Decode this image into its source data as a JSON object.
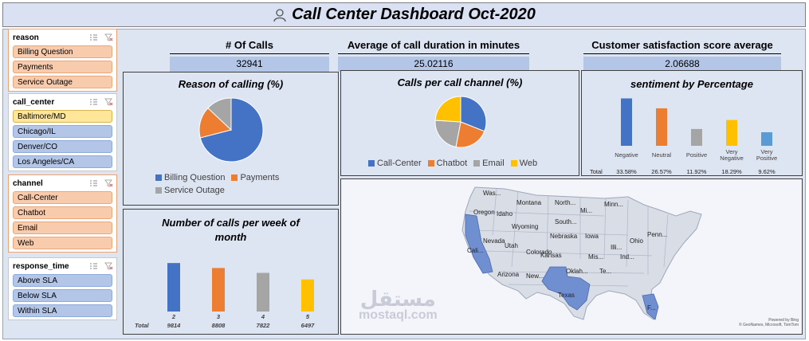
{
  "title": "Call Center Dashboard Oct-2020",
  "colors": {
    "blue": "#4472c4",
    "orange": "#ed7d31",
    "gray": "#a5a5a5",
    "yellow": "#ffc000",
    "lightblue": "#5b9bd5"
  },
  "slicers": [
    {
      "label": "reason",
      "style": "orange",
      "items": [
        {
          "label": "Billing Question",
          "style": "orange"
        },
        {
          "label": "Payments",
          "style": "orange"
        },
        {
          "label": "Service Outage",
          "style": "orange"
        }
      ]
    },
    {
      "label": "call_center",
      "style": "blue",
      "items": [
        {
          "label": "Baltimore/MD",
          "style": "yellow"
        },
        {
          "label": "Chicago/IL",
          "style": "blue"
        },
        {
          "label": "Denver/CO",
          "style": "blue"
        },
        {
          "label": "Los Angeles/CA",
          "style": "blue"
        }
      ]
    },
    {
      "label": "channel",
      "style": "orange",
      "items": [
        {
          "label": "Call-Center",
          "style": "orange"
        },
        {
          "label": "Chatbot",
          "style": "orange"
        },
        {
          "label": "Email",
          "style": "orange"
        },
        {
          "label": "Web",
          "style": "orange"
        }
      ]
    },
    {
      "label": "response_time",
      "style": "blue",
      "items": [
        {
          "label": "Above SLA",
          "style": "blue"
        },
        {
          "label": "Below SLA",
          "style": "blue"
        },
        {
          "label": "Within SLA",
          "style": "blue"
        }
      ]
    }
  ],
  "kpis": {
    "calls": {
      "label": "# Of Calls",
      "value": "32941"
    },
    "duration": {
      "label": "Average of call duration in minutes",
      "value": "25.02116"
    },
    "csat": {
      "label": "Customer satisfaction score average",
      "value": "2.06688"
    }
  },
  "chart_data": [
    {
      "type": "pie",
      "title": "Reason of calling (%)",
      "categories": [
        "Billing Question",
        "Payments",
        "Service Outage"
      ],
      "values": [
        71,
        16,
        13
      ],
      "colors": [
        "#4472c4",
        "#ed7d31",
        "#a5a5a5"
      ]
    },
    {
      "type": "pie",
      "title": "Calls per call channel (%)",
      "categories": [
        "Call-Center",
        "Chatbot",
        "Email",
        "Web"
      ],
      "values": [
        31,
        22,
        23,
        24
      ],
      "colors": [
        "#4472c4",
        "#ed7d31",
        "#a5a5a5",
        "#ffc000"
      ]
    },
    {
      "type": "bar",
      "title": "sentiment by Percentage",
      "categories": [
        "Negative",
        "Neutral",
        "Positive",
        "Very Negative",
        "Very Positive"
      ],
      "values": [
        33.58,
        26.57,
        11.92,
        18.29,
        9.62
      ],
      "value_labels": [
        "33.58%",
        "26.57%",
        "11.92%",
        "18.29%",
        "9.62%"
      ],
      "total_label": "Total",
      "colors": [
        "#4472c4",
        "#ed7d31",
        "#a5a5a5",
        "#ffc000",
        "#5b9bd5"
      ],
      "ylim": [
        0,
        35
      ]
    },
    {
      "type": "bar",
      "title": "Number of calls per week of month",
      "categories": [
        "2",
        "3",
        "4",
        "5"
      ],
      "values": [
        9814,
        8808,
        7822,
        6497
      ],
      "total_label": "Total",
      "colors": [
        "#4472c4",
        "#ed7d31",
        "#a5a5a5",
        "#ffc000"
      ],
      "ylim": [
        0,
        10000
      ]
    }
  ],
  "map": {
    "labels": [
      "Was...",
      "Oregon",
      "Idaho",
      "Montana",
      "North...",
      "Mi...",
      "Minn...",
      "Wyoming",
      "South...",
      "Nevada",
      "Nebraska",
      "Iowa",
      "Illi...",
      "Ohio",
      "Penn...",
      "Cali...",
      "Utah",
      "Colorado",
      "Kansas",
      "Mis...",
      "Ind...",
      "Arizona",
      "New...",
      "Oklah...",
      "Te...",
      "Texas",
      "F..."
    ],
    "credit_line1": "Powered by Bing",
    "credit_line2": "© GeoNames, Microsoft, TomTom"
  },
  "watermark": {
    "arabic": "مستقل",
    "latin": "mostaql.com"
  }
}
